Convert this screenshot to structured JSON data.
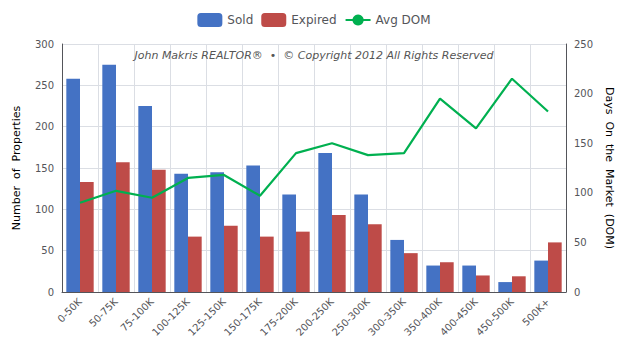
{
  "chart_data": {
    "type": "bar",
    "categories": [
      "0-50K",
      "50-75K",
      "75-100K",
      "100-125K",
      "125-150K",
      "150-175K",
      "175-200K",
      "200-250K",
      "250-300K",
      "300-350K",
      "350-400K",
      "400-450K",
      "450-500K",
      "500K+"
    ],
    "series": [
      {
        "name": "Sold",
        "type": "bar",
        "color": "#4472C4",
        "values": [
          258,
          275,
          225,
          143,
          145,
          153,
          118,
          168,
          118,
          63,
          32,
          32,
          12,
          38
        ]
      },
      {
        "name": "Expired",
        "type": "bar",
        "color": "#BE4B48",
        "values": [
          133,
          157,
          148,
          67,
          80,
          67,
          73,
          93,
          82,
          47,
          36,
          20,
          19,
          60
        ]
      },
      {
        "name": "Avg DOM",
        "type": "line",
        "color": "#00B050",
        "axis": "y2",
        "values": [
          90,
          102,
          95,
          115,
          118,
          97,
          140,
          150,
          138,
          140,
          195,
          165,
          215,
          182
        ]
      }
    ],
    "ylabel": "Number  of  Properties",
    "y2label": "Days  On  the  Market  (DOM)",
    "ylim": [
      0,
      300
    ],
    "yticks": [
      0,
      50,
      100,
      150,
      200,
      250,
      300
    ],
    "y2lim": [
      0,
      250
    ],
    "y2ticks": [
      0,
      50,
      100,
      150,
      200,
      250
    ],
    "grid": true,
    "legend": "top",
    "annotations": [
      "John Makris REALTOR®  •  © Copyright 2012 All Rights Reserved"
    ]
  }
}
